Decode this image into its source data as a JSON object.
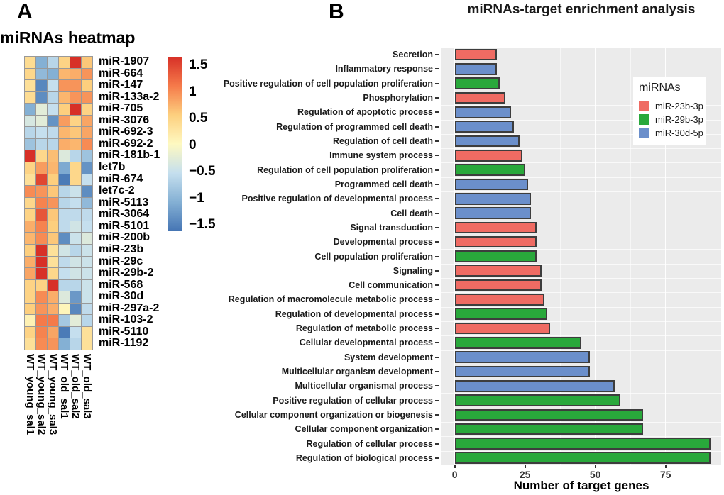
{
  "figure": {
    "panel_a": {
      "label": "A",
      "title": "miRNAs heatmap",
      "colorbar_tick_labels": [
        "1.5",
        "1",
        "0.5",
        "0",
        "−0.5",
        "−1",
        "−1.5"
      ]
    },
    "panel_b": {
      "label": "B",
      "title": "miRNAs-target enrichment analysis",
      "xlabel": "Number of target genes",
      "legend": {
        "title": "miRNAs",
        "entries": [
          "miR-23b-3p",
          "miR-29b-3p",
          "miR-30d-5p"
        ]
      }
    }
  },
  "chart_data": [
    {
      "type": "heatmap",
      "title": "miRNAs heatmap",
      "columns": [
        "WT_young_sal1",
        "WT_young_sal2",
        "WT_young_sal3",
        "WT_old_sal1",
        "WT_old_sal2",
        "WT_old_sal3"
      ],
      "rows": [
        "miR-1907",
        "miR-664",
        "miR-147",
        "miR-133a-2",
        "miR-705",
        "miR-3076",
        "miR-692-3",
        "miR-692-2",
        "miR-181b-1",
        "let7b",
        "miR-674",
        "let7c-2",
        "miR-5113",
        "miR-3064",
        "miR-5101",
        "miR-200b",
        "miR-23b",
        "miR-29c",
        "miR-29b-2",
        "miR-568",
        "miR-30d",
        "miR-297a-2",
        "miR-103-2",
        "miR-5110",
        "miR-1192"
      ],
      "values": [
        [
          0.35,
          -1.0,
          -0.6,
          0.45,
          1.65,
          0.55
        ],
        [
          0.4,
          -0.9,
          -1.0,
          0.65,
          0.7,
          0.85
        ],
        [
          0.3,
          -1.35,
          -0.5,
          0.85,
          0.85,
          0.5
        ],
        [
          0.35,
          -1.3,
          -0.6,
          0.65,
          0.85,
          0.85
        ],
        [
          -1.0,
          -0.25,
          -0.5,
          0.5,
          1.6,
          0.45
        ],
        [
          -0.35,
          -0.25,
          -1.25,
          0.8,
          0.45,
          0.75
        ],
        [
          -0.6,
          -0.5,
          -0.55,
          0.65,
          0.55,
          0.75
        ],
        [
          -0.8,
          -0.6,
          -0.6,
          0.7,
          0.65,
          0.9
        ],
        [
          1.7,
          0.4,
          0.6,
          -0.3,
          -0.6,
          -0.8
        ],
        [
          0.45,
          0.8,
          0.65,
          -1.05,
          0.4,
          -1.25
        ],
        [
          0.3,
          1.35,
          0.5,
          -1.45,
          0.4,
          -0.5
        ],
        [
          0.9,
          0.85,
          0.55,
          -0.6,
          -0.45,
          -1.3
        ],
        [
          0.4,
          0.95,
          0.85,
          -0.6,
          -0.5,
          -0.9
        ],
        [
          0.45,
          1.25,
          0.55,
          -0.55,
          -0.55,
          -0.55
        ],
        [
          0.7,
          0.95,
          0.5,
          -0.55,
          -0.4,
          -0.5
        ],
        [
          0.65,
          0.9,
          0.55,
          -1.3,
          -0.45,
          -0.3
        ],
        [
          0.5,
          1.6,
          0.3,
          -0.4,
          -0.6,
          -0.45
        ],
        [
          0.7,
          1.55,
          0.3,
          -0.55,
          -0.4,
          -0.45
        ],
        [
          0.75,
          1.55,
          0.4,
          -0.5,
          -0.4,
          -0.45
        ],
        [
          0.45,
          0.45,
          1.55,
          -0.6,
          -0.6,
          -0.45
        ],
        [
          0.45,
          0.9,
          0.7,
          -0.3,
          -1.2,
          -0.45
        ],
        [
          0.5,
          0.85,
          0.7,
          0.05,
          -1.35,
          -0.55
        ],
        [
          0.1,
          1.0,
          1.0,
          -0.75,
          -0.25,
          -0.6
        ],
        [
          0.45,
          0.95,
          0.75,
          -1.45,
          -0.5,
          0.3
        ],
        [
          0.3,
          0.9,
          0.85,
          -1.0,
          -0.6,
          0.3
        ]
      ],
      "scale": {
        "min": -1.5,
        "max": 1.5,
        "ticks": [
          1.5,
          1,
          0.5,
          0,
          -0.5,
          -1,
          -1.5
        ]
      },
      "palette_stops": [
        {
          "v": -1.5,
          "c": "#4575B4"
        },
        {
          "v": -1.0,
          "c": "#84B0D4"
        },
        {
          "v": -0.5,
          "c": "#C5DFEE"
        },
        {
          "v": 0.0,
          "c": "#FEF9C1"
        },
        {
          "v": 0.5,
          "c": "#FDCF7E"
        },
        {
          "v": 1.0,
          "c": "#F57A4A"
        },
        {
          "v": 1.5,
          "c": "#D73027"
        }
      ]
    },
    {
      "type": "bar",
      "orientation": "horizontal",
      "title": "miRNAs-target enrichment analysis",
      "xlabel": "Number of target genes",
      "categories": [
        "Secretion",
        "Inflammatory response",
        "Positive regulation of cell population proliferation",
        "Phosphorylation",
        "Regulation of apoptotic process",
        "Regulation of programmed cell death",
        "Regulation of cell death",
        "Immune system process",
        "Regulation of cell population proliferation",
        "Programmed cell death",
        "Positive regulation of developmental process",
        "Cell death",
        "Signal transduction",
        "Developmental process",
        "Cell population proliferation",
        "Signaling",
        "Cell communication",
        "Regulation of macromolecule metabolic process",
        "Regulation of developmental process",
        "Regulation of metabolic process",
        "Cellular developmental process",
        "System development",
        "Multicellular organism development",
        "Multicellular organismal process",
        "Positive regulation of cellular process",
        "Cellular component organization or biogenesis",
        "Cellular component organization",
        "Regulation of cellular process",
        "Regulation of biological process"
      ],
      "values": [
        15,
        15,
        16,
        18,
        20,
        21,
        23,
        24,
        25,
        26,
        27,
        27,
        29,
        29,
        29,
        31,
        31,
        32,
        33,
        34,
        45,
        48,
        48,
        57,
        59,
        67,
        67,
        91,
        91
      ],
      "groups": [
        "miR-23b-3p",
        "miR-30d-5p",
        "miR-29b-3p",
        "miR-23b-3p",
        "miR-30d-5p",
        "miR-30d-5p",
        "miR-30d-5p",
        "miR-23b-3p",
        "miR-29b-3p",
        "miR-30d-5p",
        "miR-30d-5p",
        "miR-30d-5p",
        "miR-23b-3p",
        "miR-23b-3p",
        "miR-29b-3p",
        "miR-23b-3p",
        "miR-23b-3p",
        "miR-23b-3p",
        "miR-29b-3p",
        "miR-23b-3p",
        "miR-29b-3p",
        "miR-30d-5p",
        "miR-30d-5p",
        "miR-30d-5p",
        "miR-29b-3p",
        "miR-29b-3p",
        "miR-29b-3p",
        "miR-29b-3p",
        "miR-29b-3p"
      ],
      "series_colors": {
        "miR-23b-3p": "#EF6B63",
        "miR-29b-3p": "#29A83B",
        "miR-30d-5p": "#6B8FCB"
      },
      "xlim": [
        0,
        95
      ],
      "x_ticks": [
        0,
        25,
        50,
        75
      ],
      "x_minor_ticks": [
        12.5,
        37.5,
        62.5,
        87.5
      ],
      "legend_position": "right-inside"
    }
  ]
}
